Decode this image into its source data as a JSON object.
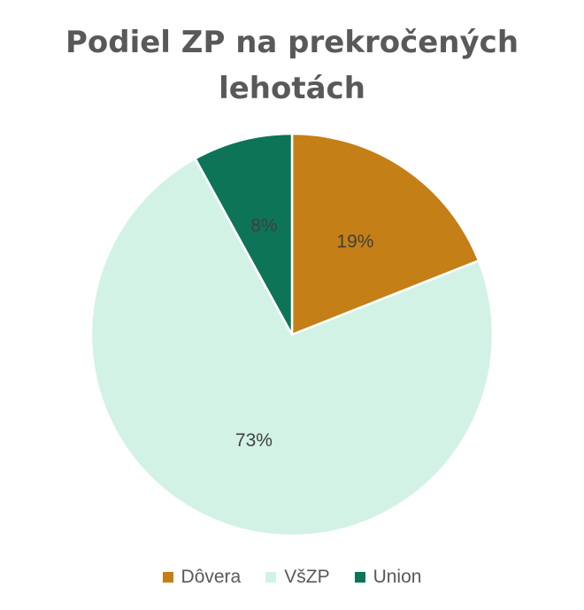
{
  "chart_data": {
    "type": "pie",
    "title": "Podiel ZP na prekročených lehotách",
    "categories": [
      "Dôvera",
      "VšZP",
      "Union"
    ],
    "values": [
      19,
      73,
      8
    ],
    "value_labels": [
      "19%",
      "73%",
      "8%"
    ],
    "colors": [
      "#C47F16",
      "#D3F2E6",
      "#0D7458"
    ],
    "legend_position": "bottom",
    "start_angle": "top (12 o'clock)",
    "direction": "clockwise"
  }
}
